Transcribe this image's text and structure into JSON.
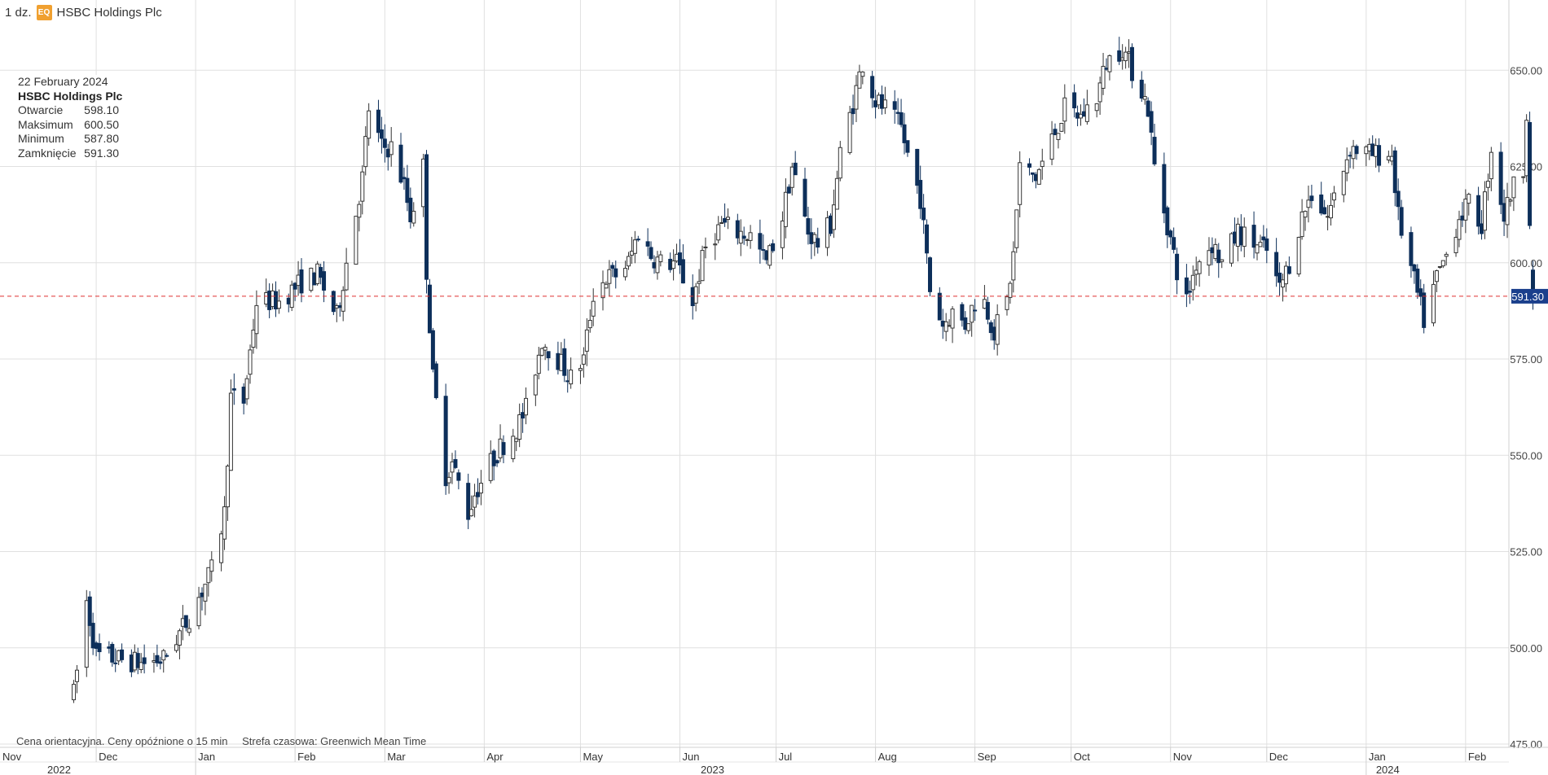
{
  "header": {
    "interval": "1 dz.",
    "badge": "EQ",
    "instrument": "HSBC Holdings Plc"
  },
  "tooltip": {
    "date": "22 February 2024",
    "name": "HSBC Holdings Plc",
    "rows": [
      {
        "label": "Otwarcie",
        "value": "598.10"
      },
      {
        "label": "Maksimum",
        "value": "600.50"
      },
      {
        "label": "Minimum",
        "value": "587.80"
      },
      {
        "label": "Zamknięcie",
        "value": "591.30"
      }
    ]
  },
  "footer": {
    "note": "Cena orientacyjna. Ceny opóźnione o 15 min",
    "timezone": "Strefa czasowa: Greenwich Mean Time"
  },
  "colors": {
    "up_candle": "#ffffff",
    "up_outline": "#333333",
    "down_candle": "#0d2f5a",
    "current_line": "#e03030",
    "price_tag": "#1a3f8c",
    "grid": "#e0e0e0"
  },
  "chart_data": {
    "type": "candlestick",
    "y_axis": {
      "ticks": [
        "475.00",
        "500.00",
        "525.00",
        "550.00",
        "575.00",
        "600.00",
        "625.00",
        "650.00"
      ],
      "range": [
        473,
        658
      ],
      "side": "right"
    },
    "x_axis": {
      "months": [
        "Nov",
        "Dec",
        "Jan",
        "Feb",
        "Mar",
        "Apr",
        "May",
        "Jun",
        "Jul",
        "Aug",
        "Sep",
        "Oct",
        "Nov",
        "Dec",
        "Jan",
        "Feb"
      ],
      "years": [
        "2022",
        "2023",
        "2024"
      ]
    },
    "current_price": "591.30",
    "anchors": [
      [
        "2022-11-24",
        488
      ],
      [
        "2022-11-28",
        512
      ],
      [
        "2022-12-01",
        498
      ],
      [
        "2022-12-08",
        497
      ],
      [
        "2022-12-15",
        496
      ],
      [
        "2022-12-22",
        497
      ],
      [
        "2022-12-30",
        508
      ],
      [
        "2023-01-06",
        520
      ],
      [
        "2023-01-10",
        535
      ],
      [
        "2023-01-12",
        565
      ],
      [
        "2023-01-16",
        564
      ],
      [
        "2023-01-20",
        590
      ],
      [
        "2023-01-27",
        590
      ],
      [
        "2023-02-03",
        595
      ],
      [
        "2023-02-08",
        597
      ],
      [
        "2023-02-14",
        586
      ],
      [
        "2023-02-17",
        600
      ],
      [
        "2023-02-22",
        622
      ],
      [
        "2023-02-24",
        640
      ],
      [
        "2023-02-28",
        630
      ],
      [
        "2023-03-03",
        630
      ],
      [
        "2023-03-07",
        620
      ],
      [
        "2023-03-09",
        612
      ],
      [
        "2023-03-13",
        625
      ],
      [
        "2023-03-14",
        598
      ],
      [
        "2023-03-16",
        570
      ],
      [
        "2023-03-20",
        545
      ],
      [
        "2023-03-22",
        548
      ],
      [
        "2023-03-27",
        535
      ],
      [
        "2023-03-29",
        540
      ],
      [
        "2023-04-03",
        548
      ],
      [
        "2023-04-06",
        552
      ],
      [
        "2023-04-11",
        557
      ],
      [
        "2023-04-14",
        562
      ],
      [
        "2023-04-19",
        580
      ],
      [
        "2023-04-24",
        575
      ],
      [
        "2023-04-28",
        570
      ],
      [
        "2023-05-02",
        575
      ],
      [
        "2023-05-05",
        592
      ],
      [
        "2023-05-09",
        596
      ],
      [
        "2023-05-12",
        597
      ],
      [
        "2023-05-16",
        600
      ],
      [
        "2023-05-19",
        608
      ],
      [
        "2023-05-23",
        602
      ],
      [
        "2023-05-26",
        600
      ],
      [
        "2023-05-31",
        600
      ],
      [
        "2023-06-05",
        590
      ],
      [
        "2023-06-09",
        604
      ],
      [
        "2023-06-14",
        610
      ],
      [
        "2023-06-19",
        608
      ],
      [
        "2023-06-23",
        607
      ],
      [
        "2023-06-28",
        600
      ],
      [
        "2023-07-03",
        612
      ],
      [
        "2023-07-06",
        625
      ],
      [
        "2023-07-11",
        608
      ],
      [
        "2023-07-14",
        605
      ],
      [
        "2023-07-18",
        610
      ],
      [
        "2023-07-21",
        628
      ],
      [
        "2023-07-26",
        645
      ],
      [
        "2023-07-28",
        652
      ],
      [
        "2023-08-01",
        642
      ],
      [
        "2023-08-04",
        640
      ],
      [
        "2023-08-09",
        635
      ],
      [
        "2023-08-11",
        628
      ],
      [
        "2023-08-15",
        617
      ],
      [
        "2023-08-18",
        593
      ],
      [
        "2023-08-22",
        584
      ],
      [
        "2023-08-25",
        587
      ],
      [
        "2023-08-29",
        584
      ],
      [
        "2023-09-01",
        590
      ],
      [
        "2023-09-04",
        590
      ],
      [
        "2023-09-07",
        582
      ],
      [
        "2023-09-11",
        590
      ],
      [
        "2023-09-13",
        602
      ],
      [
        "2023-09-15",
        625
      ],
      [
        "2023-09-20",
        622
      ],
      [
        "2023-09-25",
        632
      ],
      [
        "2023-09-29",
        640
      ],
      [
        "2023-10-04",
        638
      ],
      [
        "2023-10-09",
        643
      ],
      [
        "2023-10-12",
        652
      ],
      [
        "2023-10-17",
        656
      ],
      [
        "2023-10-20",
        650
      ],
      [
        "2023-10-23",
        645
      ],
      [
        "2023-10-25",
        640
      ],
      [
        "2023-10-27",
        625
      ],
      [
        "2023-10-31",
        610
      ],
      [
        "2023-11-03",
        598
      ],
      [
        "2023-11-06",
        590
      ],
      [
        "2023-11-09",
        600
      ],
      [
        "2023-11-14",
        605
      ],
      [
        "2023-11-17",
        600
      ],
      [
        "2023-11-22",
        608
      ],
      [
        "2023-11-27",
        605
      ],
      [
        "2023-12-01",
        603
      ],
      [
        "2023-12-05",
        593
      ],
      [
        "2023-12-08",
        600
      ],
      [
        "2023-12-12",
        612
      ],
      [
        "2023-12-15",
        618
      ],
      [
        "2023-12-20",
        612
      ],
      [
        "2023-12-27",
        630
      ],
      [
        "2024-01-03",
        628
      ],
      [
        "2024-01-09",
        628
      ],
      [
        "2024-01-11",
        612
      ],
      [
        "2024-01-16",
        595
      ],
      [
        "2024-01-19",
        585
      ],
      [
        "2024-01-23",
        596
      ],
      [
        "2024-01-26",
        602
      ],
      [
        "2024-01-30",
        612
      ],
      [
        "2024-02-02",
        615
      ],
      [
        "2024-02-06",
        610
      ],
      [
        "2024-02-09",
        630
      ],
      [
        "2024-02-13",
        612
      ],
      [
        "2024-02-15",
        618
      ],
      [
        "2024-02-19",
        625
      ],
      [
        "2024-02-20",
        640
      ],
      [
        "2024-02-21",
        610
      ],
      [
        "2024-02-22",
        591.3
      ]
    ],
    "last_candle": {
      "date": "2024-02-22",
      "open": 598.1,
      "high": 600.5,
      "low": 587.8,
      "close": 591.3
    }
  }
}
